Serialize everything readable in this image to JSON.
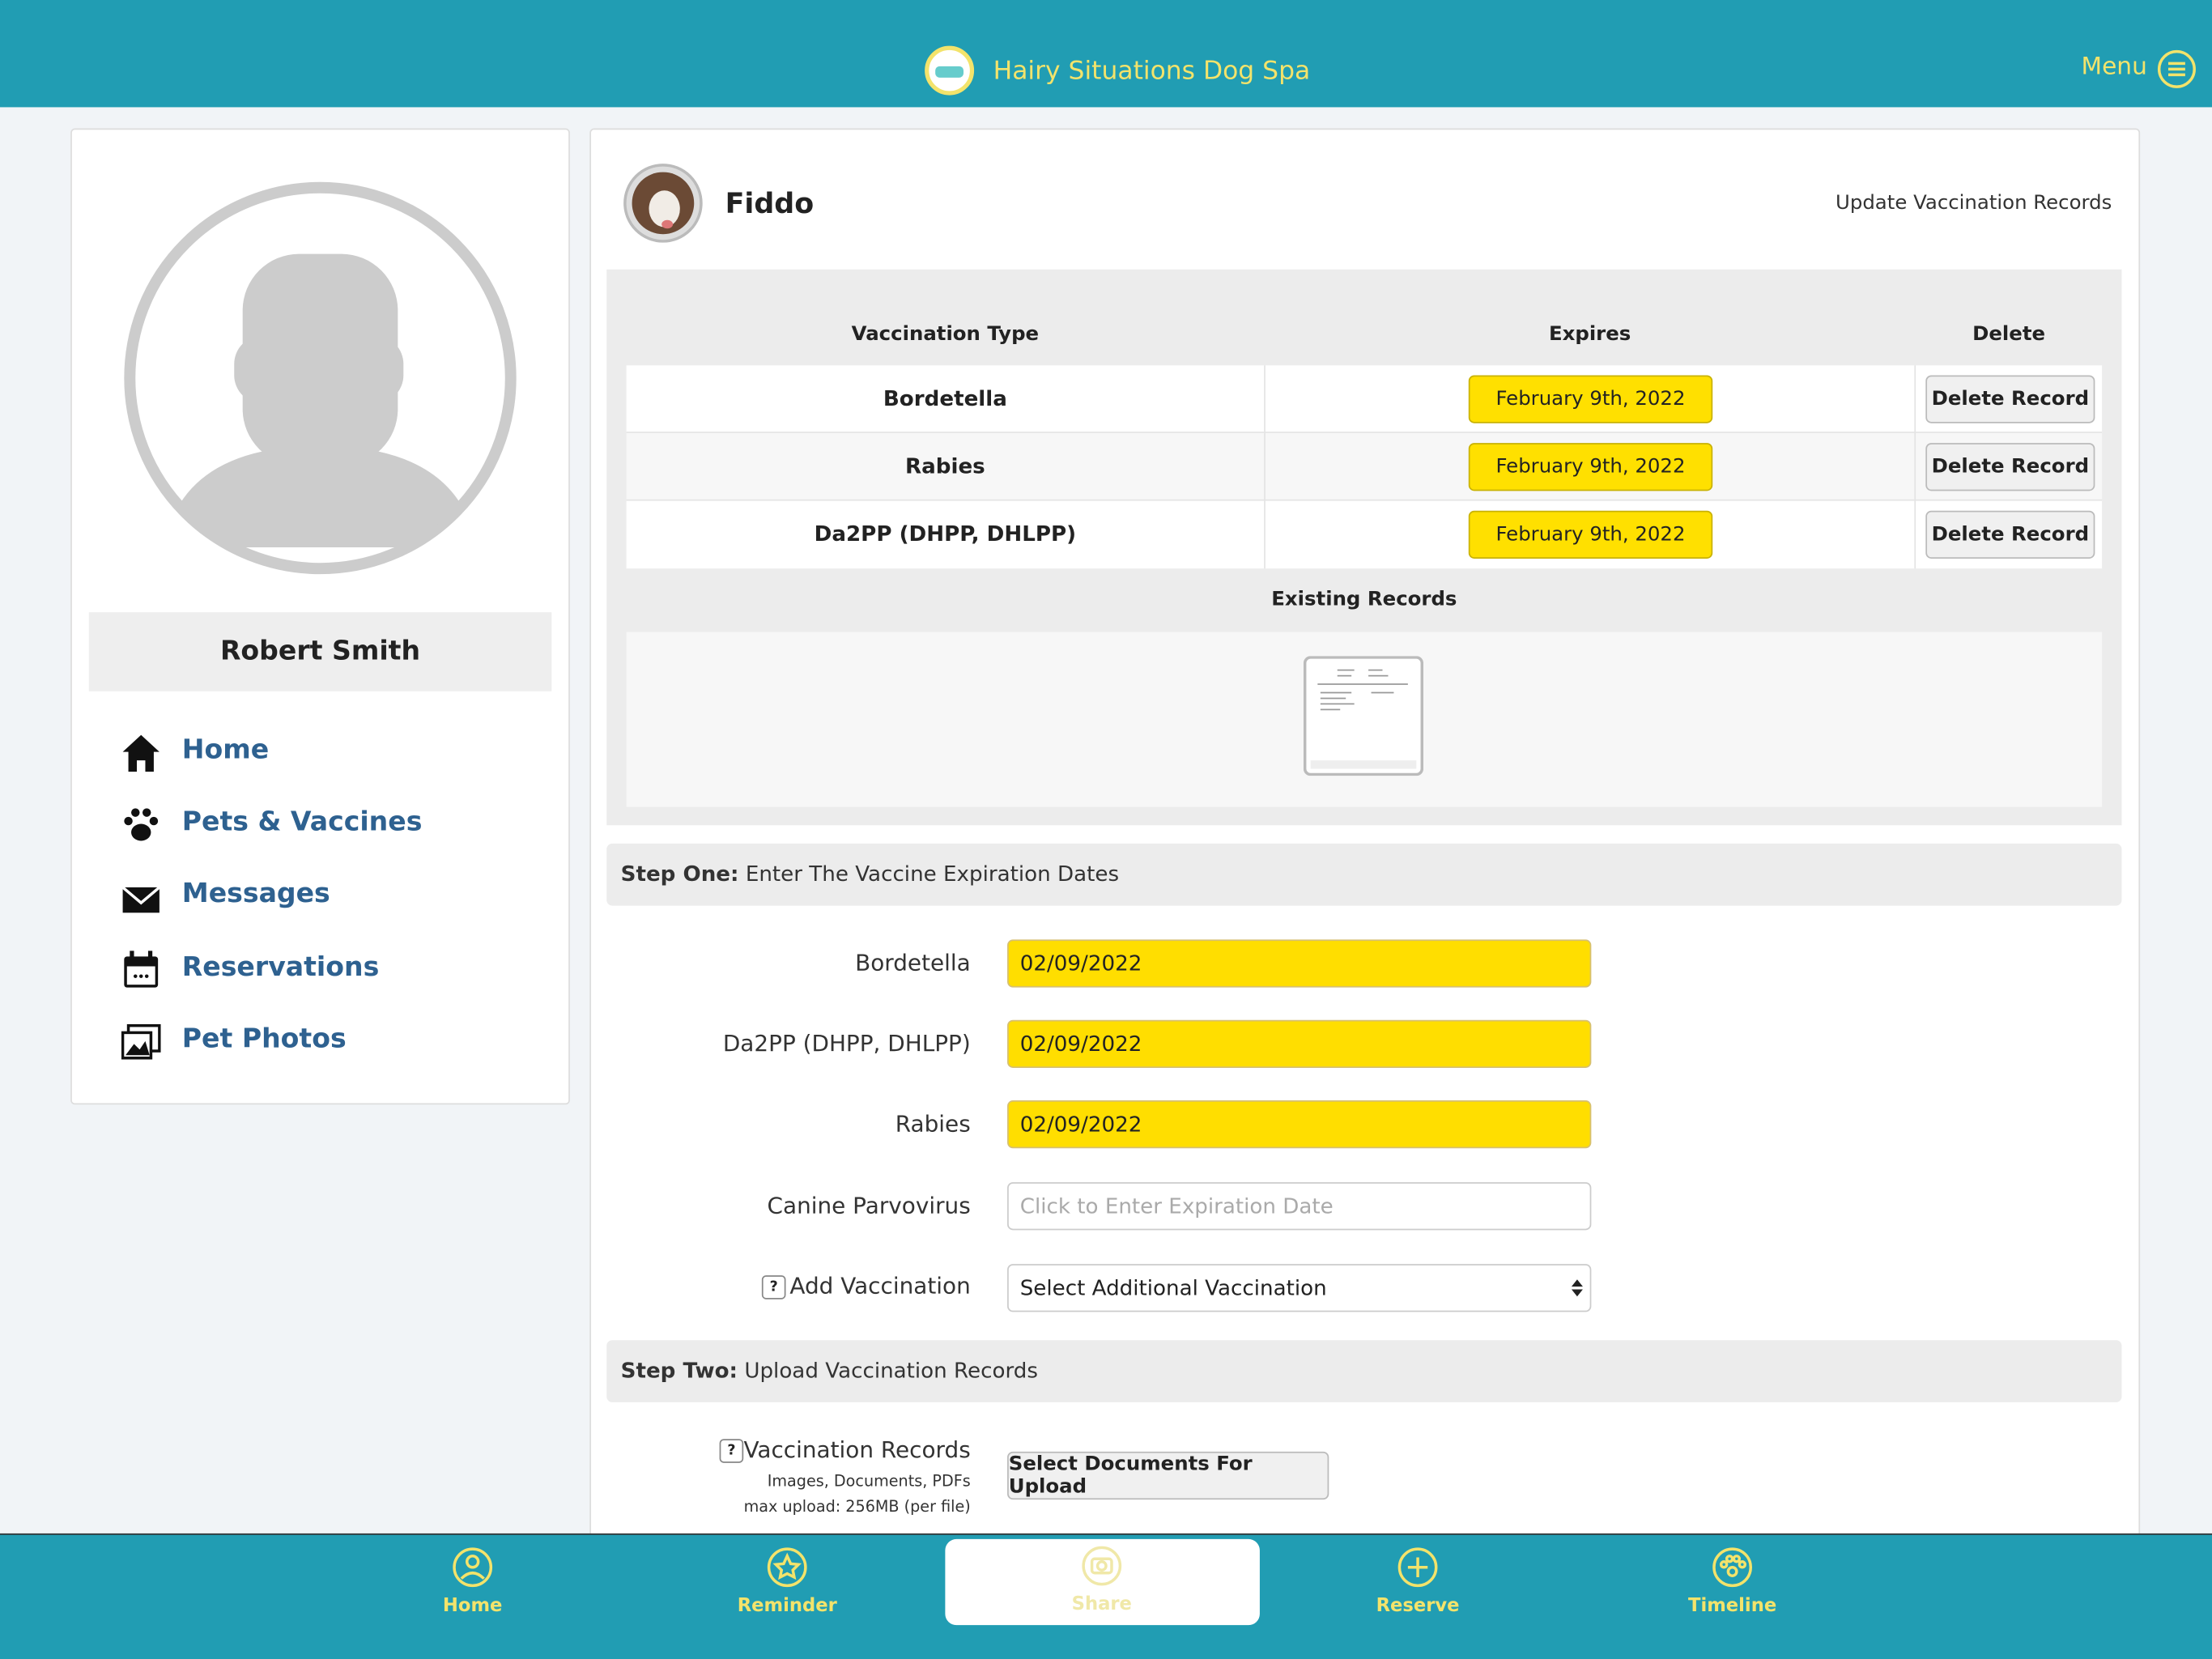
{
  "header": {
    "title": "Hairy Situations Dog Spa",
    "menu": "Menu"
  },
  "sidebar": {
    "name": "Robert Smith",
    "nav": [
      "Home",
      "Pets & Vaccines",
      "Messages",
      "Reservations",
      "Pet Photos"
    ]
  },
  "pet": {
    "name": "Fiddo",
    "action": "Update Vaccination Records"
  },
  "table": {
    "headers": [
      "Vaccination Type",
      "Expires",
      "Delete"
    ],
    "rows": [
      [
        "Bordetella",
        "February 9th, 2022",
        "Delete Record"
      ],
      [
        "Rabies",
        "February 9th, 2022",
        "Delete Record"
      ],
      [
        "Da2PP (DHPP, DHLPP)",
        "February 9th, 2022",
        "Delete Record"
      ]
    ],
    "existing": "Existing Records"
  },
  "step_one": {
    "label": "Step One:",
    "text": "Enter The Vaccine Expiration Dates"
  },
  "form": [
    {
      "label": "Bordetella",
      "value": "02/09/2022"
    },
    {
      "label": "Da2PP (DHPP, DHLPP)",
      "value": "02/09/2022"
    },
    {
      "label": "Rabies",
      "value": "02/09/2022"
    },
    {
      "label": "Canine Parvovirus",
      "placeholder": "Click to Enter Expiration Date"
    },
    {
      "label": "Add Vaccination",
      "select": "Select Additional Vaccination"
    }
  ],
  "step_two": {
    "label": "Step Two:",
    "text": "Upload Vaccination Records"
  },
  "upload": {
    "label": "Vaccination Records",
    "note1": "Images, Documents, PDFs",
    "note2": "max upload: 256MB (per file)",
    "button": "Select Documents For Upload"
  },
  "bottom_nav": [
    "Home",
    "Reminder",
    "Share",
    "Reserve",
    "Timeline"
  ]
}
